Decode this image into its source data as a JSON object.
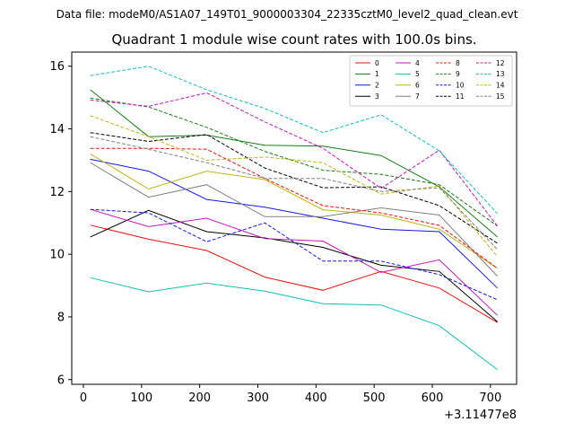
{
  "chart_data": {
    "type": "line",
    "suptitle": "Data file: modeM0/AS1A07_149T01_9000003304_22335cztM0_level2_quad_clean.evt",
    "title": "Quadrant 1 module wise count rates with 100.0s bins.",
    "xlabel": "",
    "ylabel": "",
    "x_offset_label": "+3.11477e8",
    "x": [
      12,
      112,
      212,
      312,
      412,
      512,
      612,
      712
    ],
    "xlim": [
      -20,
      745
    ],
    "ylim": [
      5.85,
      16.45
    ],
    "x_ticks": [
      0,
      100,
      200,
      300,
      400,
      500,
      600,
      700
    ],
    "x_tick_labels": [
      "0",
      "100",
      "200",
      "300",
      "400",
      "500",
      "600",
      "700"
    ],
    "y_ticks": [
      6,
      8,
      10,
      12,
      14,
      16
    ],
    "y_tick_labels": [
      "6",
      "8",
      "10",
      "12",
      "14",
      "16"
    ],
    "legend_position": "top-right",
    "series": [
      {
        "name": "0",
        "color": "#e8140c",
        "dash": "solid",
        "values": [
          10.93,
          10.48,
          10.12,
          9.27,
          8.85,
          9.45,
          8.92,
          7.82
        ]
      },
      {
        "name": "1",
        "color": "#128012",
        "dash": "solid",
        "values": [
          15.25,
          13.75,
          13.8,
          13.48,
          13.45,
          13.15,
          12.15,
          10.55
        ]
      },
      {
        "name": "2",
        "color": "#1418e8",
        "dash": "solid",
        "values": [
          13.03,
          12.65,
          11.75,
          11.5,
          11.15,
          10.8,
          10.72,
          8.92
        ]
      },
      {
        "name": "3",
        "color": "#000000",
        "dash": "solid",
        "values": [
          10.55,
          11.4,
          10.72,
          10.52,
          10.22,
          9.65,
          9.45,
          7.85
        ]
      },
      {
        "name": "4",
        "color": "#c414c0",
        "dash": "solid",
        "values": [
          11.43,
          10.88,
          11.15,
          10.5,
          10.42,
          9.42,
          9.82,
          8.05
        ]
      },
      {
        "name": "5",
        "color": "#10bcc0",
        "dash": "solid",
        "values": [
          9.25,
          8.8,
          9.08,
          8.82,
          8.42,
          8.38,
          7.72,
          6.32
        ]
      },
      {
        "name": "6",
        "color": "#bcb414",
        "dash": "solid",
        "values": [
          13.2,
          12.08,
          12.65,
          12.38,
          11.42,
          11.25,
          10.8,
          9.55
        ]
      },
      {
        "name": "7",
        "color": "#808080",
        "dash": "solid",
        "values": [
          12.92,
          11.82,
          12.22,
          11.2,
          11.2,
          11.48,
          11.25,
          9.3
        ]
      },
      {
        "name": "8",
        "color": "#e8140c",
        "dash": "dashed",
        "values": [
          13.38,
          13.38,
          13.35,
          12.42,
          11.55,
          11.32,
          10.92,
          9.55
        ]
      },
      {
        "name": "9",
        "color": "#128012",
        "dash": "dashed",
        "values": [
          14.98,
          14.7,
          14.05,
          13.28,
          12.68,
          12.55,
          12.22,
          10.9
        ]
      },
      {
        "name": "10",
        "color": "#1418e8",
        "dash": "dashed",
        "values": [
          11.43,
          11.32,
          10.4,
          11.0,
          9.78,
          9.78,
          9.35,
          8.55
        ]
      },
      {
        "name": "11",
        "color": "#000000",
        "dash": "dashed",
        "values": [
          13.88,
          13.6,
          13.82,
          12.75,
          12.12,
          12.15,
          11.55,
          10.35
        ]
      },
      {
        "name": "12",
        "color": "#c414c0",
        "dash": "dashed",
        "values": [
          14.92,
          14.72,
          15.15,
          14.22,
          13.38,
          12.1,
          13.32,
          10.9
        ]
      },
      {
        "name": "13",
        "color": "#10bcc0",
        "dash": "dashed",
        "values": [
          15.7,
          16.0,
          15.25,
          14.65,
          13.88,
          14.45,
          13.3,
          11.3
        ]
      },
      {
        "name": "14",
        "color": "#bcb414",
        "dash": "dashed",
        "values": [
          14.42,
          13.75,
          13.0,
          13.1,
          12.92,
          11.92,
          12.18,
          9.92
        ]
      },
      {
        "name": "15",
        "color": "#808080",
        "dash": "dashed",
        "values": [
          13.75,
          13.35,
          12.92,
          12.42,
          12.42,
          12.0,
          12.12,
          10.15
        ]
      }
    ]
  }
}
